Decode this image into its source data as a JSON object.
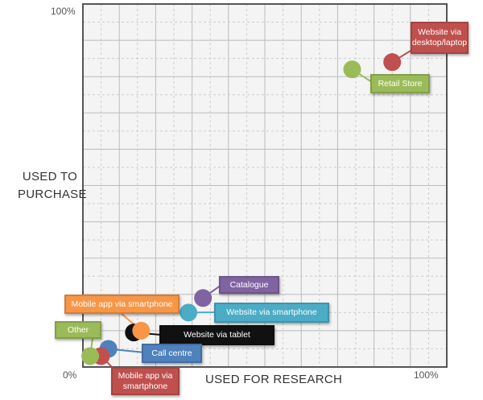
{
  "chart_data": {
    "type": "scatter",
    "xlabel": "USED FOR RESEARCH",
    "ylabel": "USED TO PURCHASE",
    "xlim": [
      0,
      100
    ],
    "ylim": [
      0,
      100
    ],
    "x_tick_labels": [
      "0%",
      "100%"
    ],
    "y_tick_labels": [
      "100%"
    ],
    "grid": true,
    "points": [
      {
        "label": "Website via desktop/laptop",
        "x": 85,
        "y": 84,
        "color": "#c0504d"
      },
      {
        "label": "Retail Store",
        "x": 74,
        "y": 82,
        "color": "#9bbb59"
      },
      {
        "label": "Catalogue",
        "x": 33,
        "y": 19,
        "color": "#8064a2"
      },
      {
        "label": "Website via smartphone",
        "x": 29,
        "y": 15,
        "color": "#4bacc6"
      },
      {
        "label": "Website via tablet",
        "x": 14,
        "y": 9.5,
        "color": "#111111"
      },
      {
        "label": "Mobile app via smartphone",
        "x": 16,
        "y": 10,
        "color": "#f79646"
      },
      {
        "label": "Call centre",
        "x": 7,
        "y": 5,
        "color": "#4f81bd"
      },
      {
        "label": "Mobile app via smartphone",
        "x": 5,
        "y": 3,
        "color": "#c0504d"
      },
      {
        "label": "Other",
        "x": 2,
        "y": 3,
        "color": "#9bbb59"
      }
    ]
  }
}
